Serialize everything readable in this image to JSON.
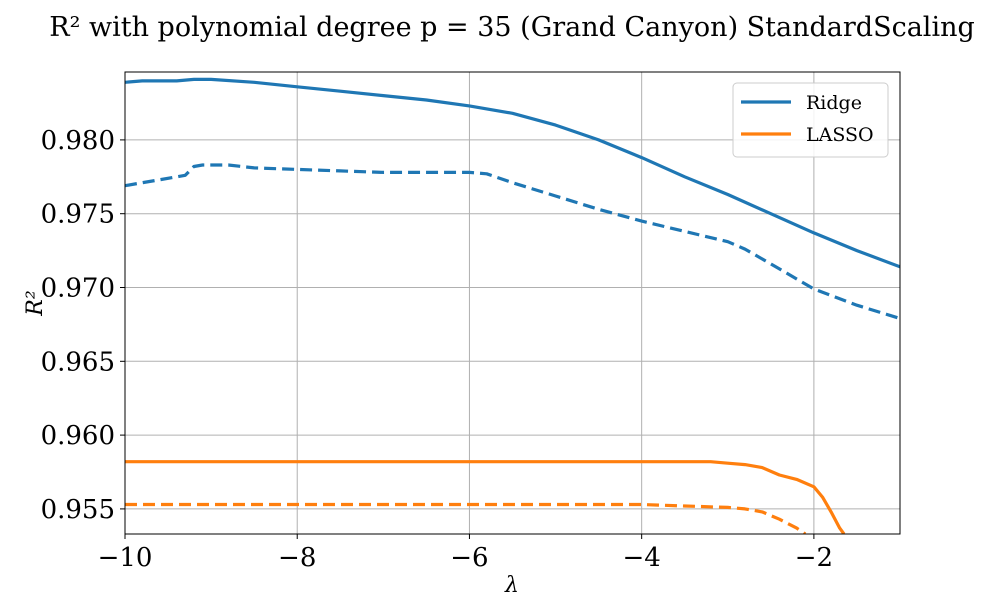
{
  "chart_data": {
    "type": "line",
    "title": "R² with polynomial degree p = 35 (Grand Canyon) StandardScaling",
    "xlabel": "λ",
    "ylabel": "R²",
    "xlim": [
      -10,
      -1
    ],
    "ylim": [
      0.9533,
      0.9846
    ],
    "grid": true,
    "legend_position": "top-right",
    "xticks": [
      -10,
      -8,
      -6,
      -4,
      -2
    ],
    "xtick_labels": [
      "−10",
      "−8",
      "−6",
      "−4",
      "−2"
    ],
    "yticks": [
      0.955,
      0.96,
      0.965,
      0.97,
      0.975,
      0.98
    ],
    "ytick_labels": [
      "0.955",
      "0.960",
      "0.965",
      "0.970",
      "0.975",
      "0.980"
    ],
    "legend": [
      {
        "label": "Ridge",
        "color": "#1f77b4"
      },
      {
        "label": "LASSO",
        "color": "#ff7f0e"
      }
    ],
    "series": [
      {
        "legend_label": "Ridge",
        "color": "#1f77b4",
        "dashed": false,
        "x": [
          -10,
          -9.8,
          -9.6,
          -9.4,
          -9.2,
          -9.0,
          -8.5,
          -8.0,
          -7.5,
          -7.0,
          -6.5,
          -6.0,
          -5.5,
          -5.0,
          -4.5,
          -4.0,
          -3.5,
          -3.0,
          -2.5,
          -2.0,
          -1.5,
          -1.0
        ],
        "y": [
          0.9839,
          0.984,
          0.984,
          0.984,
          0.9841,
          0.9841,
          0.9839,
          0.9836,
          0.9833,
          0.983,
          0.9827,
          0.9823,
          0.9818,
          0.981,
          0.98,
          0.9788,
          0.9775,
          0.9763,
          0.975,
          0.9737,
          0.9725,
          0.9714
        ]
      },
      {
        "color": "#1f77b4",
        "dashed": true,
        "x": [
          -10,
          -9.8,
          -9.6,
          -9.4,
          -9.3,
          -9.2,
          -9.1,
          -9.0,
          -8.8,
          -8.5,
          -8.0,
          -7.5,
          -7.0,
          -6.5,
          -6.0,
          -5.8,
          -5.5,
          -5.0,
          -4.5,
          -4.0,
          -3.5,
          -3.0,
          -2.8,
          -2.5,
          -2.0,
          -1.5,
          -1.0
        ],
        "y": [
          0.9769,
          0.9771,
          0.9773,
          0.9775,
          0.9776,
          0.9782,
          0.9783,
          0.9783,
          0.9783,
          0.9781,
          0.978,
          0.9779,
          0.9778,
          0.9778,
          0.9778,
          0.9777,
          0.9771,
          0.9762,
          0.9753,
          0.9745,
          0.9738,
          0.9731,
          0.9726,
          0.9716,
          0.9699,
          0.9688,
          0.9679
        ]
      },
      {
        "legend_label": "LASSO",
        "color": "#ff7f0e",
        "dashed": false,
        "x": [
          -10,
          -9,
          -8,
          -7,
          -6,
          -5,
          -4,
          -3.5,
          -3.2,
          -3.0,
          -2.8,
          -2.6,
          -2.4,
          -2.2,
          -2.0,
          -1.9,
          -1.8,
          -1.7,
          -1.65
        ],
        "y": [
          0.9582,
          0.9582,
          0.9582,
          0.9582,
          0.9582,
          0.9582,
          0.9582,
          0.9582,
          0.9582,
          0.9581,
          0.958,
          0.9578,
          0.9573,
          0.957,
          0.9565,
          0.9558,
          0.9548,
          0.9537,
          0.9533
        ]
      },
      {
        "color": "#ff7f0e",
        "dashed": true,
        "x": [
          -10,
          -9,
          -8,
          -7,
          -6,
          -5,
          -4,
          -3.5,
          -3.0,
          -2.8,
          -2.6,
          -2.4,
          -2.2,
          -2.1
        ],
        "y": [
          0.9553,
          0.9553,
          0.9553,
          0.9553,
          0.9553,
          0.9553,
          0.9553,
          0.9552,
          0.9551,
          0.955,
          0.9548,
          0.9543,
          0.9537,
          0.9533
        ]
      }
    ]
  }
}
